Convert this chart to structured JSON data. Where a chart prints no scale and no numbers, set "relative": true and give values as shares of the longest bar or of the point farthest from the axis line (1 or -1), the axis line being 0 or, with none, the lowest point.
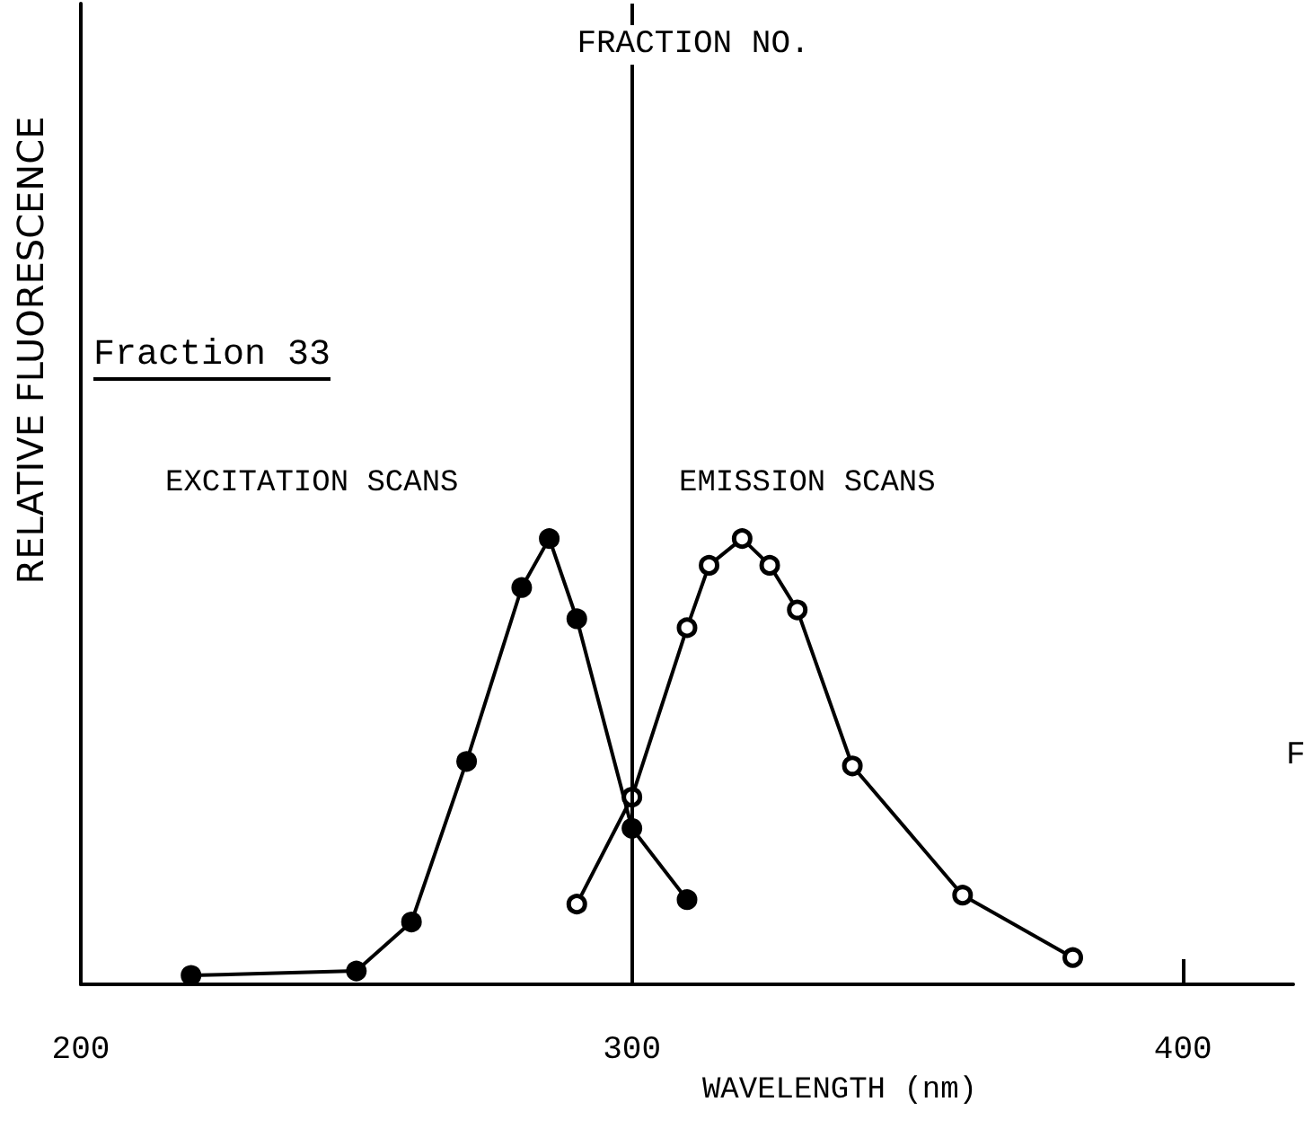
{
  "chart_data": {
    "type": "line",
    "title": "FRACTION NO.",
    "xlabel": "WAVELENGTH (nm)",
    "ylabel": "RELATIVE FLUORESCENCE",
    "relative": true,
    "xlim": [
      200,
      420
    ],
    "xticks": [
      200,
      300,
      400
    ],
    "marker": "circle",
    "line_style": "solid",
    "grid": false,
    "annotations": [
      "Fraction 33",
      "EXCITATION SCANS",
      "EMISSION SCANS",
      "F"
    ],
    "ref_lines": [
      {
        "axis": "x",
        "value": 300,
        "color": "#000000"
      }
    ],
    "series": [
      {
        "color": "#000000",
        "x": [
          220,
          250,
          260,
          270,
          280,
          285,
          290,
          300,
          310
        ],
        "values": [
          0.02,
          0.03,
          0.14,
          0.5,
          0.89,
          1.0,
          0.82,
          0.35,
          0.19
        ]
      },
      {
        "color": "#000000",
        "x": [
          290,
          300,
          310,
          314,
          320,
          325,
          330,
          340,
          360,
          380
        ],
        "values": [
          0.18,
          0.42,
          0.8,
          0.94,
          1.0,
          0.94,
          0.84,
          0.49,
          0.2,
          0.06
        ]
      }
    ]
  }
}
